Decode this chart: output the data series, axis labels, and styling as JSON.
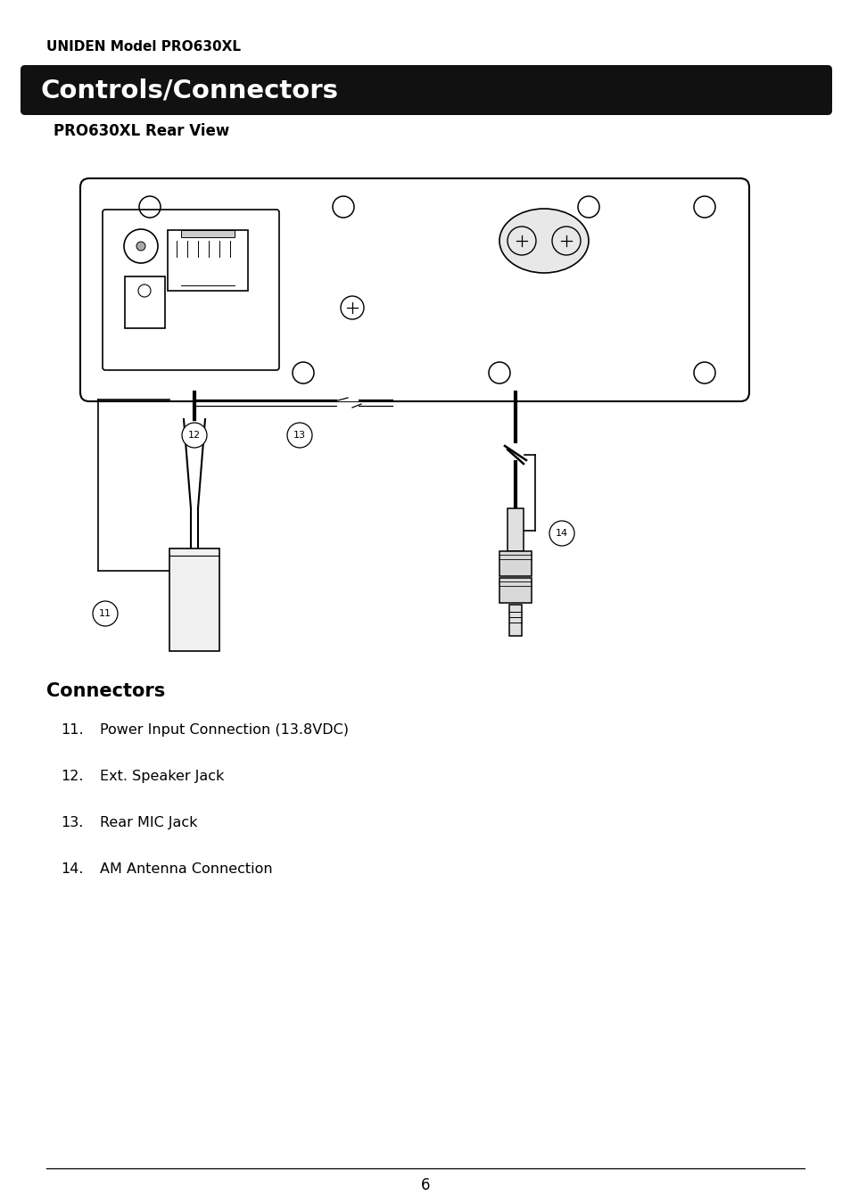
{
  "page_title": "UNIDEN Model PRO630XL",
  "section_title": "Controls/Connectors",
  "subsection": "PRO630XL Rear View",
  "connectors_title": "Connectors",
  "items": [
    {
      "num": "11.",
      "text": "Power Input Connection (13.8VDC)"
    },
    {
      "num": "12.",
      "text": "Ext. Speaker Jack"
    },
    {
      "num": "13.",
      "text": "Rear MIC Jack"
    },
    {
      "num": "14.",
      "text": "AM Antenna Connection"
    }
  ],
  "footer_text": "6",
  "bg_color": "#ffffff",
  "text_color": "#000000",
  "header_bg": "#111111",
  "header_text": "#ffffff"
}
